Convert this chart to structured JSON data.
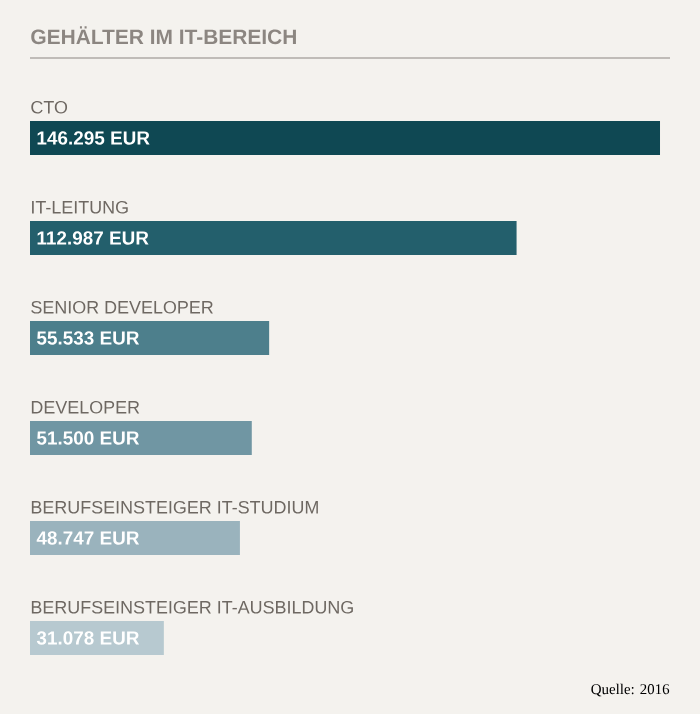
{
  "chart_data": {
    "type": "bar",
    "orientation": "horizontal",
    "title": "GEHÄLTER IM IT-BEREICH",
    "categories": [
      "CTO",
      "IT-LEITUNG",
      "SENIOR DEVELOPER",
      "DEVELOPER",
      "BERUFSEINSTEIGER IT-STUDIUM",
      "BERUFSEINSTEIGER IT-AUSBILDUNG"
    ],
    "values": [
      146295,
      112987,
      55533,
      51500,
      48747,
      31078
    ],
    "value_labels": [
      "146.295 EUR",
      "112.987 EUR",
      "55.533 EUR",
      "51.500 EUR",
      "48.747 EUR",
      "31.078 EUR"
    ],
    "colors": [
      "#0f4853",
      "#235f6c",
      "#4d7f8c",
      "#7096a3",
      "#9ab3bd",
      "#b7c9d0"
    ],
    "annotations": [
      "Quelle: 2016"
    ]
  }
}
